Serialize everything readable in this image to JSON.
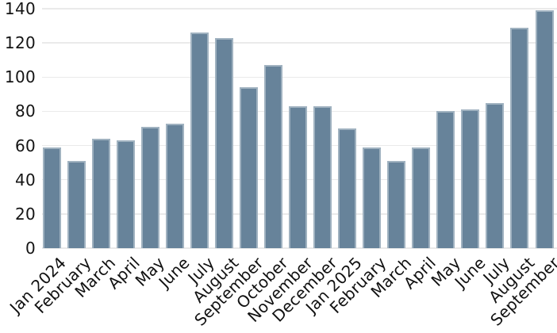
{
  "chart_data": {
    "type": "bar",
    "title": "",
    "xlabel": "",
    "ylabel": "",
    "categories": [
      "Jan 2024",
      "February",
      "March",
      "April",
      "May",
      "June",
      "July",
      "August",
      "September",
      "October",
      "November",
      "December",
      "Jan 2025",
      "February",
      "March",
      "April",
      "May",
      "June",
      "July",
      "August",
      "September"
    ],
    "values": [
      59,
      51,
      64,
      63,
      71,
      73,
      126,
      123,
      94,
      107,
      83,
      83,
      70,
      59,
      51,
      59,
      80,
      81,
      85,
      129,
      139
    ],
    "ylim": [
      0,
      140
    ],
    "yticks": [
      0,
      20,
      40,
      60,
      80,
      100,
      120,
      140
    ],
    "grid": "horizontal",
    "legend": "none",
    "x_label_rotation_deg": 45,
    "colors": {
      "bar_fill": "#67839A",
      "bar_stroke_highlight": "#A9BAC6",
      "gridline": "#EAEAEA",
      "tick_label": "#111111",
      "background": "#FFFFFF"
    }
  }
}
